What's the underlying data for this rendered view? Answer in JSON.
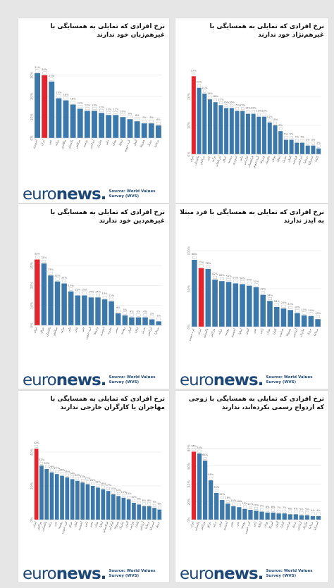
{
  "brand": {
    "logo_prefix": "euro",
    "logo_suffix": "news",
    "logo_dot": ".",
    "source": "Source: World Values Survey (WVS)"
  },
  "colors": {
    "highlight": "#e3262d",
    "bar": "#3c78a9",
    "grid": "#e6e6e6",
    "axis_text": "#888888"
  },
  "chart_data": [
    {
      "type": "bar",
      "title": "نرخ افرادی که تمایلی به همسایگی با غیرهم‌زبان خود ندارند",
      "categories": [
        "اندونزی",
        "ایران",
        "چین",
        "ترکیه",
        "بنگلادش",
        "پاکستان",
        "مراکش",
        "روسیه",
        "آرژانتین",
        "مکزیک",
        "ژاپن",
        "یونان",
        "ایتالیا",
        "کره جنوبی",
        "آلمان",
        "ونزوئلا",
        "برزیل",
        "بریتانیا"
      ],
      "values": [
        31,
        30,
        27,
        19,
        18,
        16,
        14,
        13,
        13,
        12,
        11,
        11,
        10,
        9,
        8,
        7,
        7,
        6
      ],
      "highlight_index": 1,
      "ylim": [
        0,
        35
      ],
      "yticks": [
        0,
        10,
        20,
        30
      ],
      "ytick_labels": [
        "0%",
        "10%",
        "20%",
        "30%"
      ]
    },
    {
      "type": "bar",
      "title": "نرخ افرادی که تمایلی به همسایگی با غیرهم‌نژاد خود ندارند",
      "categories": [
        "ایران",
        "پاکستان",
        "مراکش",
        "چین",
        "ترکیه",
        "آذربایجان",
        "عراق",
        "روسیه",
        "اندونزی",
        "ژاپن",
        "اوکراین",
        "قزاقستان",
        "کره جنوبی",
        "ونزوئلا",
        "مکزیک",
        "یونان",
        "ایتالیا",
        "برزیل",
        "آلمان",
        "فرانسه",
        "آرژانتین",
        "بریتانیا",
        "استرالیا",
        "کانادا"
      ],
      "values": [
        27,
        23,
        21,
        19,
        18,
        17,
        16,
        16,
        15,
        15,
        14,
        14,
        13,
        13,
        11,
        10,
        8,
        5,
        5,
        4,
        4,
        3,
        3,
        2
      ],
      "highlight_index": 0,
      "ylim": [
        0,
        30
      ],
      "yticks": [
        0,
        10,
        20
      ],
      "ytick_labels": [
        "0%",
        "10%",
        "20%"
      ]
    },
    {
      "type": "bar",
      "title": "نرخ افرادی که تمایلی به همسایگی با غیرهم‌دین خود ندارند",
      "categories": [
        "ایران",
        "عراق",
        "پاکستان",
        "مراکش",
        "ترکیه",
        "ژاپن",
        "لبنان",
        "چین",
        "کره جنوبی",
        "ونزوئلا",
        "اندونزی",
        "نیجریه",
        "مصر",
        "روسیه",
        "آلمان",
        "ایتالیا",
        "برزیل",
        "آرژانتین",
        "بریتانیا"
      ],
      "values": [
        33,
        31,
        25,
        22,
        21,
        17,
        15,
        15,
        14,
        14,
        13,
        12,
        6,
        5,
        4,
        4,
        4,
        3,
        2
      ],
      "highlight_index": 0,
      "ylim": [
        0,
        36
      ],
      "yticks": [
        0,
        10,
        20,
        30
      ],
      "ytick_labels": [
        "0%",
        "10%",
        "20%",
        "30%"
      ]
    },
    {
      "type": "bar",
      "title": "نرخ افرادی که تمایلی به همسایگی با فرد مبتلا به ایدز ندارند",
      "categories": [
        "کره جنوبی",
        "ایران",
        "پاکستان",
        "مراکش",
        "ترکیه",
        "روسیه",
        "اندونزی",
        "ایتالیا",
        "آلمان",
        "چین",
        "ژاپن",
        "یونان",
        "کانادا",
        "فرانسه",
        "ونزوئلا",
        "آرژانتین",
        "مکزیک",
        "برزیل",
        "بریتانیا"
      ],
      "values": [
        88,
        77,
        76,
        62,
        60,
        59,
        57,
        56,
        54,
        52,
        42,
        34,
        26,
        24,
        22,
        18,
        15,
        14,
        10
      ],
      "highlight_index": 1,
      "ylim": [
        0,
        100
      ],
      "yticks": [
        0,
        50,
        100
      ],
      "ytick_labels": [
        "0%",
        "50%",
        "100%"
      ]
    },
    {
      "type": "bar",
      "title": "نرخ افرادی که تمایلی به همسایگی با مهاجران یا کارگران خارجی ندارند",
      "categories": [
        "ایران",
        "مراکش",
        "پاکستان",
        "ترکیه",
        "چین",
        "روسیه",
        "کره جنوبی",
        "عراق",
        "لبنان",
        "اندونزی",
        "ژاپن",
        "مصر",
        "یونان",
        "ایتالیا",
        "قزاقستان",
        "اوکراین",
        "ونزوئلا",
        "مکزیک",
        "آلمان",
        "فرانسه",
        "کانادا",
        "آرژانتین",
        "بریتانیا",
        "استرالیا",
        "برزیل"
      ],
      "values": [
        42,
        32,
        30,
        28,
        27,
        26,
        25,
        24,
        23,
        22,
        21,
        20,
        19,
        18,
        17,
        15,
        14,
        13,
        12,
        10,
        9,
        8,
        8,
        7,
        6
      ],
      "highlight_index": 0,
      "ylim": [
        0,
        45
      ],
      "yticks": [
        0,
        20,
        40
      ],
      "ytick_labels": [
        "0%",
        "20%",
        "40%"
      ]
    },
    {
      "type": "bar",
      "title": "نرخ افرادی که تمایلی به همسایگی با زوجی که ازدواج رسمی نکرده‌اند، ندارند",
      "categories": [
        "ایران",
        "پاکستان",
        "مراکش",
        "عراق",
        "ترکیه",
        "لبنان",
        "اندونزی",
        "مصر",
        "چین",
        "روسیه",
        "کره جنوبی",
        "ژاپن",
        "ایتالیا",
        "یونان",
        "آمریکا",
        "آلمان",
        "کانادا",
        "فرانسه",
        "برزیل",
        "آرژانتین",
        "مکزیک",
        "بریتانیا",
        "استرالیا"
      ],
      "values": [
        76,
        74,
        66,
        44,
        30,
        22,
        18,
        15,
        14,
        12,
        11,
        10,
        9,
        8,
        8,
        7,
        7,
        6,
        6,
        5,
        5,
        4,
        4
      ],
      "highlight_index": 0,
      "ylim": [
        0,
        85
      ],
      "yticks": [
        0,
        20,
        40,
        60,
        80
      ],
      "ytick_labels": [
        "0%",
        "20%",
        "40%",
        "60%",
        "80%"
      ]
    }
  ]
}
